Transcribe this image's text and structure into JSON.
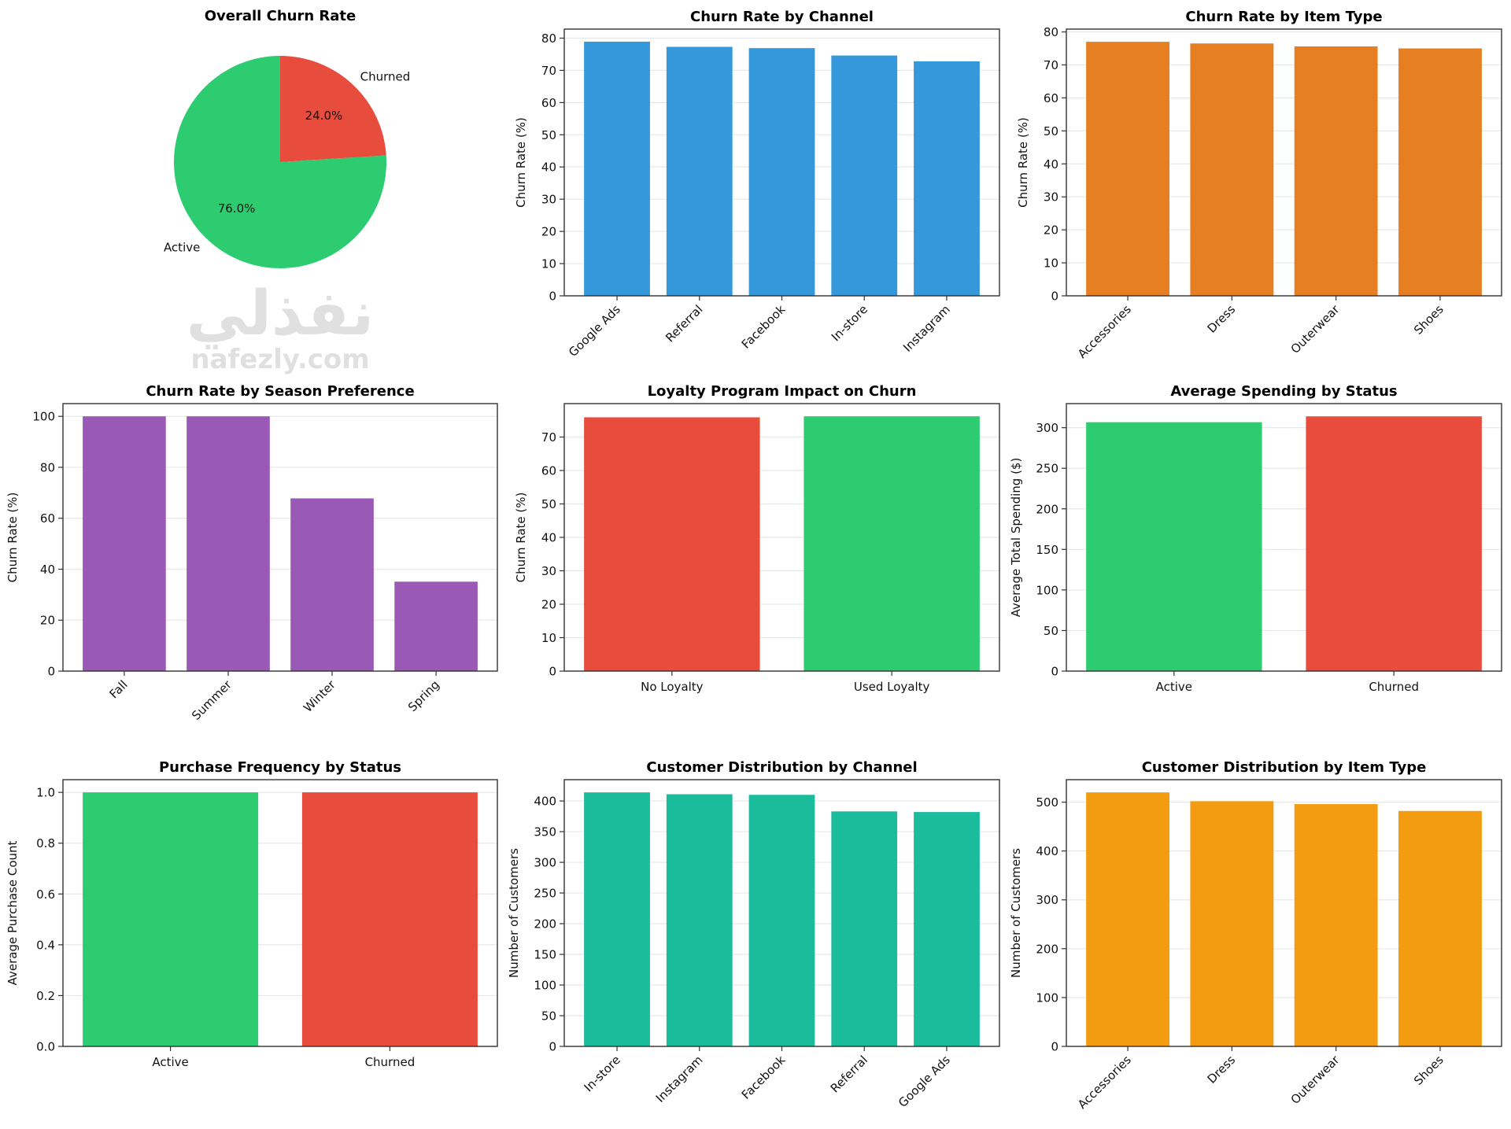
{
  "watermark": {
    "arabic": "نفذلي",
    "latin": "nafezly.com"
  },
  "chart_data": [
    {
      "type": "pie",
      "title": "Overall Churn Rate",
      "labels": [
        "Active",
        "Churned"
      ],
      "values": [
        76.0,
        24.0
      ],
      "pct_labels": [
        "76.0%",
        "24.0%"
      ],
      "colors": [
        "#2ecc71",
        "#e74c3c"
      ],
      "startangle": 90
    },
    {
      "type": "bar",
      "title": "Churn Rate by Channel",
      "categories": [
        "Google Ads",
        "Referral",
        "Facebook",
        "In-store",
        "Instagram"
      ],
      "values": [
        78.9,
        77.3,
        76.9,
        74.6,
        72.8
      ],
      "xlabel": "",
      "ylabel": "Churn Rate (%)",
      "ylim": [
        0,
        82.8
      ],
      "yticks": [
        0,
        10,
        20,
        30,
        40,
        50,
        60,
        70,
        80
      ],
      "ytick_labels": [
        "0",
        "10",
        "20",
        "30",
        "40",
        "50",
        "60",
        "70",
        "80"
      ],
      "color": "#3498db",
      "grid": "y"
    },
    {
      "type": "bar",
      "title": "Churn Rate by Item Type",
      "categories": [
        "Accessories",
        "Dress",
        "Outerwear",
        "Shoes"
      ],
      "values": [
        77.0,
        76.5,
        75.6,
        75.0
      ],
      "xlabel": "",
      "ylabel": "Churn Rate (%)",
      "ylim": [
        0,
        80.85
      ],
      "yticks": [
        0,
        10,
        20,
        30,
        40,
        50,
        60,
        70,
        80
      ],
      "ytick_labels": [
        "0",
        "10",
        "20",
        "30",
        "40",
        "50",
        "60",
        "70",
        "80"
      ],
      "color": "#e67e22",
      "grid": "y"
    },
    {
      "type": "bar",
      "title": "Churn Rate by Season Preference",
      "categories": [
        "Fall",
        "Summer",
        "Winter",
        "Spring"
      ],
      "values": [
        100.0,
        100.0,
        67.8,
        35.1
      ],
      "xlabel": "",
      "ylabel": "Churn Rate (%)",
      "ylim": [
        0,
        105
      ],
      "yticks": [
        0,
        20,
        40,
        60,
        80,
        100
      ],
      "ytick_labels": [
        "0",
        "20",
        "40",
        "60",
        "80",
        "100"
      ],
      "color": "#9b59b6",
      "grid": "y"
    },
    {
      "type": "bar",
      "title": "Loyalty Program Impact on Churn",
      "categories": [
        "No Loyalty",
        "Used Loyalty"
      ],
      "values": [
        75.9,
        76.2
      ],
      "xlabel": "",
      "ylabel": "Churn Rate (%)",
      "ylim": [
        0,
        80.0
      ],
      "yticks": [
        0,
        10,
        20,
        30,
        40,
        50,
        60,
        70
      ],
      "ytick_labels": [
        "0",
        "10",
        "20",
        "30",
        "40",
        "50",
        "60",
        "70"
      ],
      "color": [
        "#e74c3c",
        "#2ecc71"
      ],
      "grid": "y"
    },
    {
      "type": "bar",
      "title": "Average Spending by Status",
      "categories": [
        "Active",
        "Churned"
      ],
      "values": [
        306.8,
        314.0
      ],
      "xlabel": "",
      "ylabel": "Average Total Spending ($)",
      "ylim": [
        0,
        329.7
      ],
      "yticks": [
        0,
        50,
        100,
        150,
        200,
        250,
        300
      ],
      "ytick_labels": [
        "0",
        "50",
        "100",
        "150",
        "200",
        "250",
        "300"
      ],
      "color": [
        "#2ecc71",
        "#e74c3c"
      ],
      "grid": "y"
    },
    {
      "type": "bar",
      "title": "Purchase Frequency by Status",
      "categories": [
        "Active",
        "Churned"
      ],
      "values": [
        1.0,
        1.0
      ],
      "xlabel": "",
      "ylabel": "Average Purchase Count",
      "ylim": [
        0,
        1.05
      ],
      "yticks": [
        0,
        0.2,
        0.4,
        0.6,
        0.8,
        1.0
      ],
      "ytick_labels": [
        "0.0",
        "0.2",
        "0.4",
        "0.6",
        "0.8",
        "1.0"
      ],
      "color": [
        "#2ecc71",
        "#e74c3c"
      ],
      "grid": "y"
    },
    {
      "type": "bar",
      "title": "Customer Distribution by Channel",
      "categories": [
        "In-store",
        "Instagram",
        "Facebook",
        "Referral",
        "Google Ads"
      ],
      "values": [
        414,
        411,
        410,
        383,
        382
      ],
      "xlabel": "",
      "ylabel": "Number of Customers",
      "ylim": [
        0,
        434.7
      ],
      "yticks": [
        0,
        50,
        100,
        150,
        200,
        250,
        300,
        350,
        400
      ],
      "ytick_labels": [
        "0",
        "50",
        "100",
        "150",
        "200",
        "250",
        "300",
        "350",
        "400"
      ],
      "color": "#1abc9c",
      "grid": "y"
    },
    {
      "type": "bar",
      "title": "Customer Distribution by Item Type",
      "categories": [
        "Accessories",
        "Dress",
        "Outerwear",
        "Shoes"
      ],
      "values": [
        520,
        502,
        496,
        482
      ],
      "xlabel": "",
      "ylabel": "Number of Customers",
      "ylim": [
        0,
        546
      ],
      "yticks": [
        0,
        100,
        200,
        300,
        400,
        500
      ],
      "ytick_labels": [
        "0",
        "100",
        "200",
        "300",
        "400",
        "500"
      ],
      "color": "#f39c12",
      "grid": "y"
    }
  ]
}
